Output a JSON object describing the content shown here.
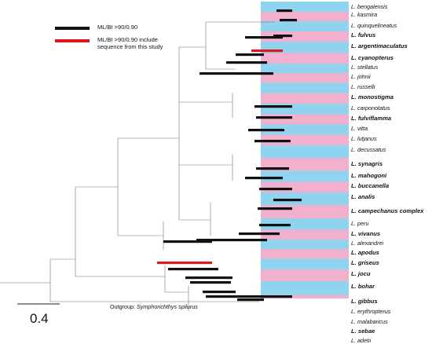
{
  "legend": {
    "black_label": "ML/BI >90/0.90",
    "red_label": "ML/BI >90/0.90 include sequence from this study",
    "black_color": "#111111",
    "red_color": "#e2141c"
  },
  "colors": {
    "blue_band": "#8fd3ef",
    "pink_band": "#f2b0cf",
    "branch": "#777777"
  },
  "taxa": [
    {
      "label": "L. bengalensis",
      "bold": false
    },
    {
      "label": "L. kasmira",
      "bold": false
    },
    {
      "label": "L. quinquelineatus",
      "bold": false
    },
    {
      "label": "L. fulvus",
      "bold": true
    },
    {
      "label": "L. argentimaculatus",
      "bold": true
    },
    {
      "label": "L. cyanopterus",
      "bold": true
    },
    {
      "label": "L. stellatus",
      "bold": false
    },
    {
      "label": "L. johnii",
      "bold": false
    },
    {
      "label": "L. russelli",
      "bold": false
    },
    {
      "label": "L. monostigma",
      "bold": true
    },
    {
      "label": "L. carponotatus",
      "bold": false
    },
    {
      "label": "L. fulviflamma",
      "bold": true
    },
    {
      "label": "L. vitta",
      "bold": false
    },
    {
      "label": "L. lutjanus",
      "bold": false
    },
    {
      "label": "L. decussatus",
      "bold": false
    },
    {
      "label": "L. synagris",
      "bold": true
    },
    {
      "label": "L. mahogoni",
      "bold": true
    },
    {
      "label": "L. buccanella",
      "bold": true
    },
    {
      "label": "L. analis",
      "bold": true
    },
    {
      "label": "L. campechanus complex",
      "bold": true
    },
    {
      "label": "L. peru",
      "bold": false
    },
    {
      "label": "L. vivanus",
      "bold": true
    },
    {
      "label": "L. alexandrei",
      "bold": false
    },
    {
      "label": "L. apodus",
      "bold": true
    },
    {
      "label": "L. griseus",
      "bold": true
    },
    {
      "label": "L. jocu",
      "bold": true
    },
    {
      "label": "L. bohar",
      "bold": true
    },
    {
      "label": "L. gibbus",
      "bold": true
    },
    {
      "label": "L. erythropterus",
      "bold": false
    },
    {
      "label": "L. malabaricus",
      "bold": false
    },
    {
      "label": "L. sebae",
      "bold": true
    },
    {
      "label": "L. adetii",
      "bold": false
    }
  ],
  "outgroup": {
    "prefix": "Outgroup:",
    "name": "Symphorichthys spilurus"
  },
  "scale": {
    "value": 0.4,
    "label": "0.4"
  }
}
